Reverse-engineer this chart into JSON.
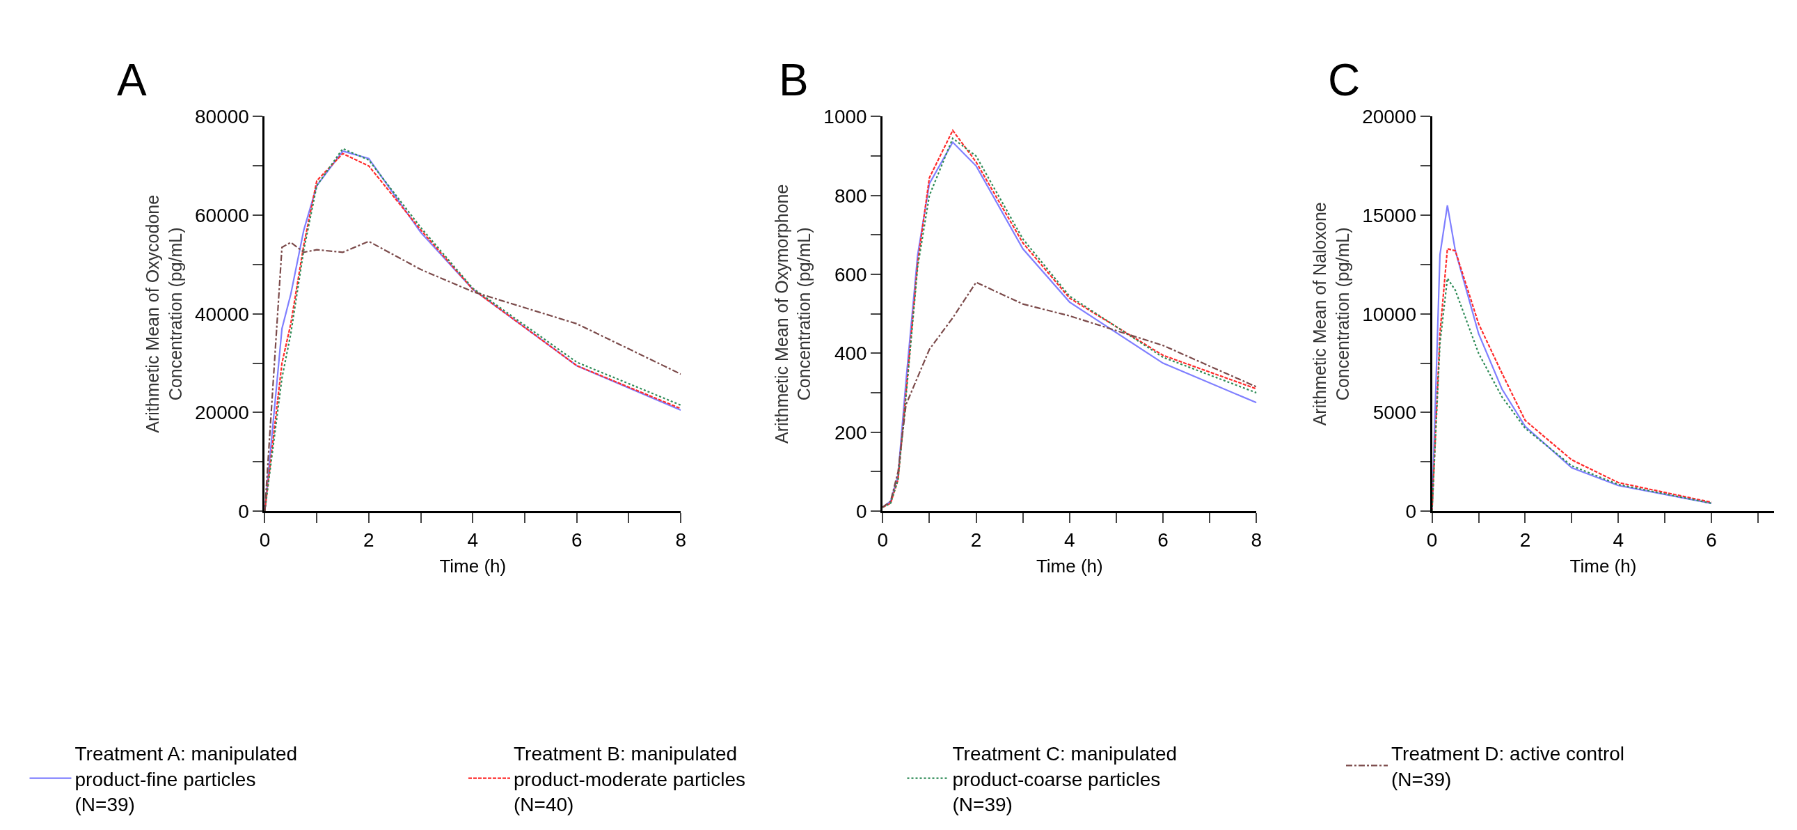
{
  "chart_data": [
    {
      "type": "line",
      "title": "A",
      "xlabel": "Time (h)",
      "ylabel": "Arithmetic Mean of Oxycodone Concentration (pg/mL)",
      "xlim": [
        0,
        8
      ],
      "ylim": [
        0,
        80000
      ],
      "xticks": [
        0,
        {
          "value": 1,
          "label": null
        },
        2,
        {
          "value": 3,
          "label": null
        },
        4,
        {
          "value": 5,
          "label": null
        },
        6,
        {
          "value": 7,
          "label": null
        },
        8
      ],
      "yticks": [
        0,
        {
          "value": 10000,
          "label": null
        },
        20000,
        {
          "value": 30000,
          "label": null
        },
        40000,
        {
          "value": 50000,
          "label": null
        },
        60000,
        {
          "value": 70000,
          "label": null
        },
        80000
      ],
      "grid": false,
      "marker": "none",
      "legend": "bottom",
      "x": [
        0,
        0.33,
        0.5,
        0.75,
        1,
        1.5,
        2,
        3,
        4,
        6,
        8
      ],
      "series": [
        {
          "name": "Treatment A: manipulated product-fine particles (N=39)",
          "color": "#7f7fff",
          "line_style": "solid",
          "values": [
            0,
            37000,
            44000,
            57000,
            66000,
            73000,
            71500,
            56500,
            45000,
            29500,
            20500
          ]
        },
        {
          "name": "Treatment B: manipulated product-moderate particles (N=40)",
          "color": "#ff2a2a",
          "line_style": "dashed",
          "values": [
            0,
            30000,
            38000,
            54000,
            67000,
            72500,
            70000,
            57000,
            45000,
            29500,
            20800
          ]
        },
        {
          "name": "Treatment C: manipulated product-coarse particles (N=39)",
          "color": "#2e8b57",
          "line_style": "dotted",
          "values": [
            0,
            27000,
            36000,
            53000,
            66000,
            73500,
            71200,
            57500,
            45200,
            30200,
            21500
          ]
        },
        {
          "name": "Treatment D: active control (N=39)",
          "color": "#7b4a4a",
          "line_style": "dashdot",
          "values": [
            0,
            53500,
            54500,
            52500,
            53000,
            52500,
            54700,
            49000,
            44500,
            38000,
            27800
          ]
        }
      ]
    },
    {
      "type": "line",
      "title": "B",
      "xlabel": "Time (h)",
      "ylabel": "Arithmetic Mean of Oxymorphone Concentration (pg/mL)",
      "xlim": [
        0,
        8
      ],
      "ylim": [
        0,
        1000
      ],
      "xticks": [
        0,
        {
          "value": 1,
          "label": null
        },
        2,
        {
          "value": 3,
          "label": null
        },
        4,
        {
          "value": 5,
          "label": null
        },
        6,
        {
          "value": 7,
          "label": null
        },
        8
      ],
      "yticks": [
        0,
        {
          "value": 100,
          "label": null
        },
        200,
        {
          "value": 300,
          "label": null
        },
        400,
        {
          "value": 500,
          "label": null
        },
        600,
        {
          "value": 700,
          "label": null
        },
        800,
        {
          "value": 900,
          "label": null
        },
        1000
      ],
      "grid": false,
      "marker": "none",
      "x": [
        0,
        0.17,
        0.33,
        0.5,
        0.75,
        1,
        1.5,
        2,
        3,
        4,
        6,
        8
      ],
      "series": [
        {
          "name": "Treatment A: manipulated product-fine particles (N=39)",
          "color": "#7f7fff",
          "line_style": "solid",
          "values": [
            10,
            25,
            90,
            330,
            650,
            830,
            935,
            875,
            665,
            530,
            375,
            275
          ]
        },
        {
          "name": "Treatment B: manipulated product-moderate particles (N=40)",
          "color": "#ff2a2a",
          "line_style": "dashed",
          "values": [
            10,
            20,
            80,
            300,
            630,
            845,
            965,
            885,
            680,
            540,
            395,
            310
          ]
        },
        {
          "name": "Treatment C: manipulated product-coarse particles (N=39)",
          "color": "#2e8b57",
          "line_style": "dotted",
          "values": [
            10,
            20,
            80,
            290,
            620,
            800,
            945,
            900,
            690,
            545,
            390,
            300
          ]
        },
        {
          "name": "Treatment D: active control (N=39)",
          "color": "#7b4a4a",
          "line_style": "dashdot",
          "values": [
            10,
            25,
            100,
            270,
            null,
            410,
            490,
            580,
            525,
            495,
            420,
            315
          ]
        }
      ]
    },
    {
      "type": "line",
      "title": "C",
      "xlabel": "Time (h)",
      "ylabel": "Arithmetic Mean of Naloxone Concentration (pg/mL)",
      "xlim": [
        0,
        7.35
      ],
      "ylim": [
        0,
        20000
      ],
      "xticks": [
        0,
        {
          "value": 1,
          "label": null
        },
        2,
        {
          "value": 3,
          "label": null
        },
        4,
        {
          "value": 5,
          "label": null
        },
        6,
        {
          "value": 7,
          "label": null
        }
      ],
      "yticks": [
        0,
        {
          "value": 2500,
          "label": null
        },
        5000,
        {
          "value": 7500,
          "label": null
        },
        10000,
        {
          "value": 12500,
          "label": null
        },
        15000,
        {
          "value": 17500,
          "label": null
        },
        20000
      ],
      "grid": false,
      "marker": "none",
      "x": [
        0,
        0.17,
        0.33,
        0.5,
        1,
        1.5,
        2,
        3,
        4,
        6
      ],
      "series": [
        {
          "name": "Treatment A: manipulated product-fine particles (N=39)",
          "color": "#7f7fff",
          "line_style": "solid",
          "values": [
            0,
            13000,
            15500,
            13200,
            9000,
            6200,
            4300,
            2200,
            1300,
            400
          ]
        },
        {
          "name": "Treatment B: manipulated product-moderate particles (N=40)",
          "color": "#ff2a2a",
          "line_style": "dashed",
          "values": [
            0,
            9000,
            13300,
            13200,
            9500,
            7000,
            4600,
            2600,
            1450,
            450
          ]
        },
        {
          "name": "Treatment C: manipulated product-coarse particles (N=39)",
          "color": "#2e8b57",
          "line_style": "dotted",
          "values": [
            0,
            8500,
            11800,
            11200,
            8000,
            5800,
            4200,
            2300,
            1350,
            400
          ]
        }
      ]
    }
  ]
}
